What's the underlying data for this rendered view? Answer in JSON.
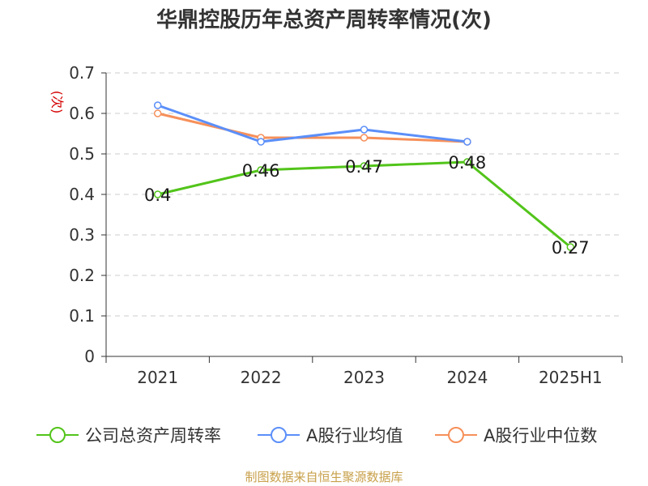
{
  "chart_data": {
    "type": "line",
    "title": "华鼎控股历年总资产周转率情况(次)",
    "ylabel": "(次)",
    "ylim": [
      0,
      0.7
    ],
    "yticks": [
      0,
      0.1,
      0.2,
      0.3,
      0.4,
      0.5,
      0.6,
      0.7
    ],
    "ytick_labels": [
      "0",
      "0.1",
      "0.2",
      "0.3",
      "0.4",
      "0.5",
      "0.6",
      "0.7"
    ],
    "categories": [
      "2021",
      "2022",
      "2023",
      "2024",
      "2025H1"
    ],
    "series": [
      {
        "name": "公司总资产周转率",
        "color": "#52c41a",
        "values": [
          0.4,
          0.46,
          0.47,
          0.48,
          0.27
        ],
        "labels": [
          "0.4",
          "0.46",
          "0.47",
          "0.48",
          "0.27"
        ]
      },
      {
        "name": "A股行业均值",
        "color": "#5b8ff9",
        "values": [
          0.62,
          0.53,
          0.56,
          0.53,
          null
        ],
        "labels": []
      },
      {
        "name": "A股行业中位数",
        "color": "#f6905a",
        "values": [
          0.6,
          0.54,
          0.54,
          0.53,
          null
        ],
        "labels": []
      }
    ],
    "grid": true,
    "legend_position": "bottom",
    "source": "制图数据来自恒生聚源数据库"
  }
}
